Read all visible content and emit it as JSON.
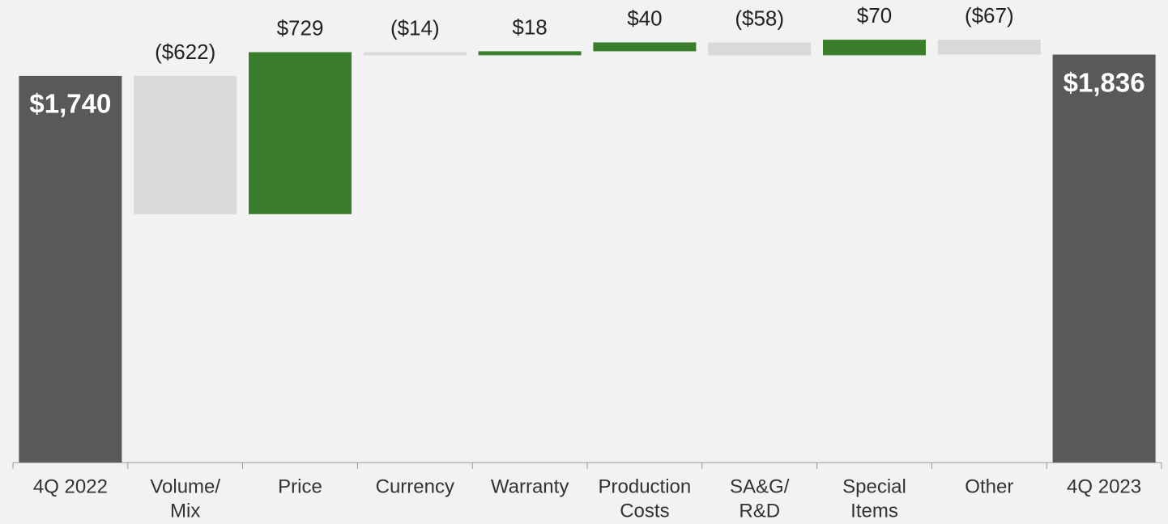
{
  "chart_data": {
    "type": "waterfall",
    "categories": [
      [
        "4Q 2022"
      ],
      [
        "Volume/",
        "Mix"
      ],
      [
        "Price"
      ],
      [
        "Currency"
      ],
      [
        "Warranty"
      ],
      [
        "Production",
        "Costs"
      ],
      [
        "SA&G/",
        "R&D"
      ],
      [
        "Special",
        "Items"
      ],
      [
        "Other"
      ],
      [
        "4Q 2023"
      ]
    ],
    "measure": [
      "total",
      "relative",
      "relative",
      "relative",
      "relative",
      "relative",
      "relative",
      "relative",
      "relative",
      "total"
    ],
    "values": [
      1740,
      -622,
      729,
      -14,
      18,
      40,
      -58,
      70,
      -67,
      1836
    ],
    "value_labels": [
      "$1,740",
      "($622)",
      "$729",
      "($14)",
      "$18",
      "$40",
      "($58)",
      "$70",
      "($67)",
      "$1,836"
    ],
    "colors": {
      "total": "#595959",
      "increase": "#3a7d2c",
      "decrease": "#d9d9d9"
    },
    "ylim": [
      0,
      2100
    ]
  }
}
